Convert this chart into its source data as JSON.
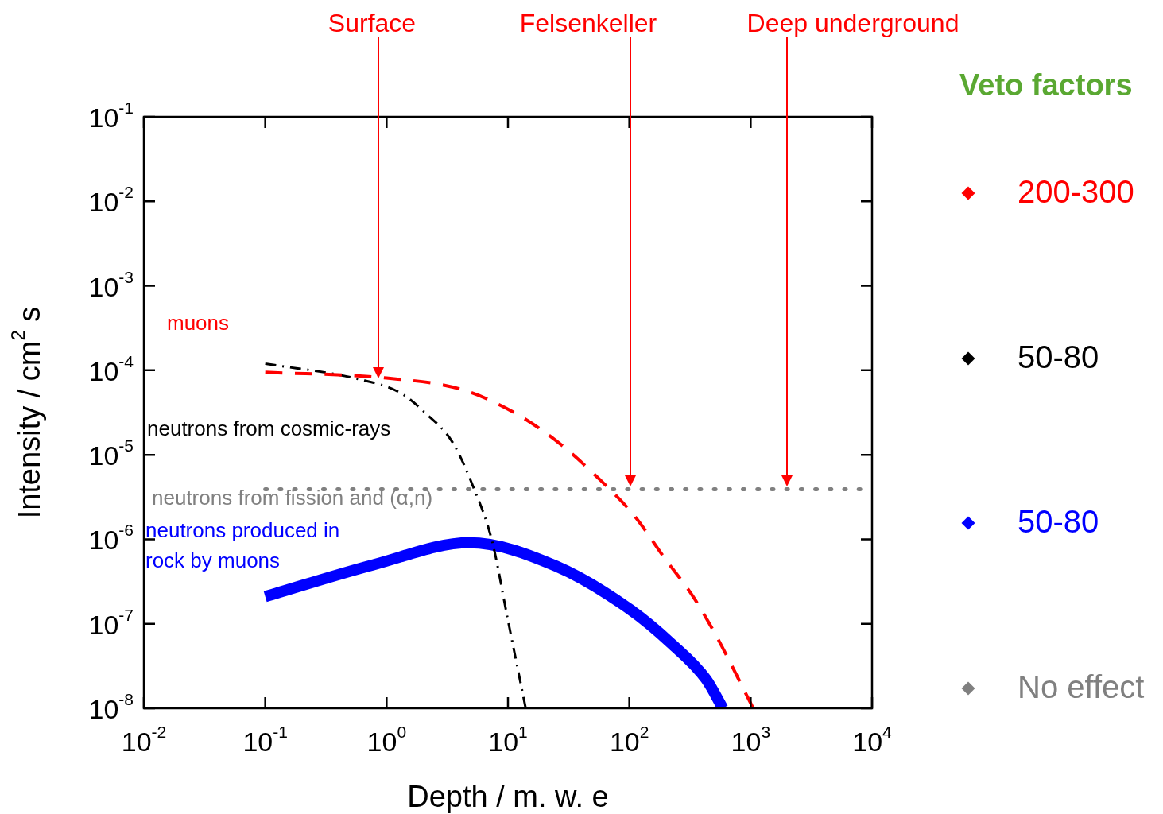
{
  "chart_data": {
    "type": "line",
    "xlabel": "Depth / m. w. e",
    "ylabel": "Intensity / cm$^{2}$ s",
    "log": "xy",
    "legend_title": "Veto factors",
    "xlim": [
      0.01,
      10000
    ],
    "ylim": [
      1e-08,
      0.1
    ],
    "xticks": [
      {
        "value": 0.01,
        "label": "10$^{-2}$"
      },
      {
        "value": 0.1,
        "label": "10$^{-1}$"
      },
      {
        "value": 1,
        "label": "10$^{0}$"
      },
      {
        "value": 10,
        "label": "10$^{1}$"
      },
      {
        "value": 100,
        "label": "10$^{2}$"
      },
      {
        "value": 1000,
        "label": "10$^{3}$"
      },
      {
        "value": 10000,
        "label": "10$^{4}$"
      }
    ],
    "yticks": [
      {
        "value": 1e-08,
        "label": "10$^{-8}$"
      },
      {
        "value": 1e-07,
        "label": "10$^{-7}$"
      },
      {
        "value": 1e-06,
        "label": "10$^{-6}$"
      },
      {
        "value": 1e-05,
        "label": "10$^{-5}$"
      },
      {
        "value": 0.0001,
        "label": "10$^{-4}$"
      },
      {
        "value": 0.001,
        "label": "10$^{-3}$"
      },
      {
        "value": 0.01,
        "label": "10$^{-2}$"
      },
      {
        "value": 0.1,
        "label": "10$^{-1}$"
      }
    ],
    "series": [
      {
        "name": "muons",
        "color": "#ff0000",
        "line_style": "dashed",
        "x": [
          0.1,
          1.0,
          4.2,
          12,
          26,
          54,
          110,
          195,
          335,
          520,
          1050
        ],
        "values": [
          9.5e-05,
          8.1e-05,
          5.9e-05,
          3e-05,
          1.4e-05,
          5.5e-06,
          1.9e-06,
          6e-07,
          2.1e-07,
          7.2e-08,
          1e-08
        ]
      },
      {
        "name": "neutrons from cosmic-rays",
        "color": "#000000",
        "line_style": "dashdot",
        "x": [
          0.1,
          0.58,
          1.3,
          2.1,
          3.5,
          5.2,
          7.4,
          10,
          14
        ],
        "values": [
          0.00012,
          7.9e-05,
          5.4e-05,
          3.1e-05,
          1.4e-05,
          4.1e-06,
          9.5e-07,
          1.1e-07,
          1e-08
        ]
      },
      {
        "name": "neutrons produced in rock by muons",
        "color": "#0000ff",
        "line_style": "solid",
        "x": [
          0.1,
          0.78,
          4.8,
          25,
          100,
          220,
          430,
          590
        ],
        "values": [
          2.1e-07,
          5e-07,
          9.1e-07,
          4.8e-07,
          1.5e-07,
          5.9e-08,
          2.2e-08,
          1e-08
        ]
      },
      {
        "name": "neutrons from fission and (α,n)",
        "color": "#808080",
        "line_style": "dotted",
        "x": [
          0.1,
          8000
        ],
        "values": [
          3.9e-06,
          3.9e-06
        ]
      }
    ],
    "annotations": [
      "Surface",
      "Felsenkeller",
      "Deep underground",
      "200-300",
      "50-80",
      "50-80",
      "No effect"
    ]
  }
}
